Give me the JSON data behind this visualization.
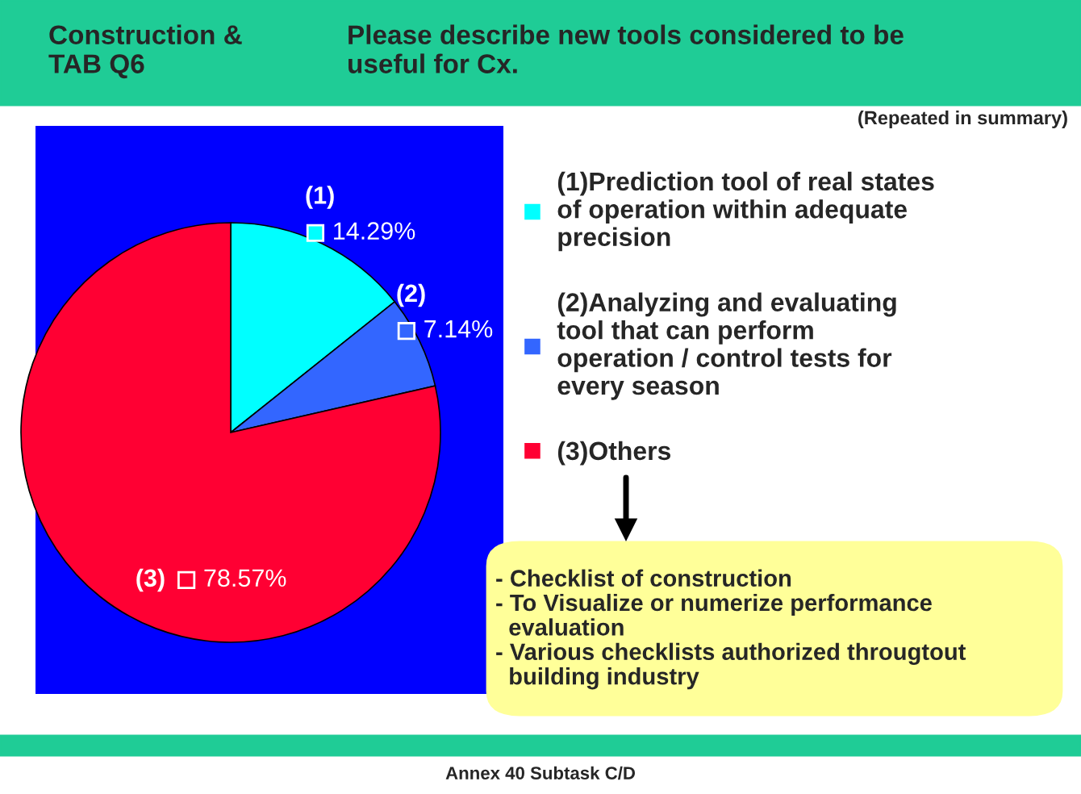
{
  "chart_data": {
    "type": "pie",
    "title": "Construction &\nTAB Q6",
    "subtitle": "Please describe new tools considered to be\nuseful for Cx.",
    "categories": [
      "(1)Prediction tool of real states\nof operation within adequate\nprecision",
      "(2)Analyzing and evaluating\ntool that can perform\noperation / control tests for\nevery season",
      "(3)Others"
    ],
    "values": [
      14.29,
      7.14,
      78.57
    ],
    "value_labels": [
      "14.29%",
      "7.14%",
      "78.57%"
    ],
    "colors": [
      "#00ffff",
      "#3366ff",
      "#ff0033"
    ],
    "legend": "right",
    "annotations": [
      {
        "text": "(1)",
        "x": "(1)Prediction tool of real states\nof operation within adequate\nprecision"
      },
      {
        "text": "(2)",
        "x": "(2)Analyzing and evaluating\ntool that can perform\noperation / control tests for\nevery season"
      },
      {
        "text": "(3)",
        "x": "(3)Others"
      },
      "(Repeated in summary)",
      "- Checklist of construction\n- To Visualize or numerize performance\n  evaluation\n- Various checklists authorized througtout\n  building industry",
      "Annex 40 Subtask C/D"
    ]
  }
}
